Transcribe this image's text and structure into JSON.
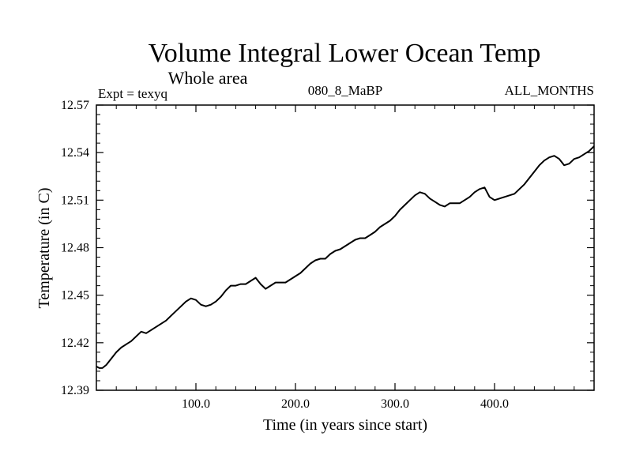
{
  "chart_data": {
    "type": "line",
    "title": "Volume Integral Lower Ocean Temp",
    "subtitle": "Whole area",
    "left_label": "Expt = texyq",
    "center_label": "080_8_MaBP",
    "right_label": "ALL_MONTHS",
    "xlabel": "Time (in years since start)",
    "ylabel": "Temperature (in C)",
    "xlim": [
      0,
      500
    ],
    "ylim": [
      12.39,
      12.57
    ],
    "x_ticks": [
      100,
      200,
      300,
      400
    ],
    "x_tick_labels": [
      "100.0",
      "200.0",
      "300.0",
      "400.0"
    ],
    "y_ticks": [
      12.39,
      12.42,
      12.45,
      12.48,
      12.51,
      12.54,
      12.57
    ],
    "y_tick_labels": [
      "12.39",
      "12.42",
      "12.45",
      "12.48",
      "12.51",
      "12.54",
      "12.57"
    ],
    "grid": false,
    "legend": "none",
    "series": [
      {
        "color": "#000000",
        "x": [
          0,
          3,
          6,
          10,
          15,
          20,
          25,
          30,
          35,
          40,
          45,
          50,
          55,
          60,
          65,
          70,
          75,
          80,
          85,
          90,
          95,
          100,
          105,
          110,
          115,
          120,
          125,
          130,
          135,
          140,
          145,
          150,
          155,
          160,
          165,
          170,
          175,
          180,
          185,
          190,
          195,
          200,
          205,
          210,
          215,
          220,
          225,
          230,
          235,
          240,
          245,
          250,
          255,
          260,
          265,
          270,
          275,
          280,
          285,
          290,
          295,
          300,
          305,
          310,
          315,
          320,
          325,
          330,
          335,
          340,
          345,
          350,
          355,
          360,
          365,
          370,
          375,
          380,
          385,
          390,
          395,
          400,
          405,
          410,
          415,
          420,
          425,
          430,
          435,
          440,
          445,
          450,
          455,
          460,
          465,
          470,
          475,
          480,
          485,
          490,
          495,
          500
        ],
        "values": [
          12.405,
          12.404,
          12.404,
          12.406,
          12.41,
          12.414,
          12.417,
          12.419,
          12.421,
          12.424,
          12.427,
          12.426,
          12.428,
          12.43,
          12.432,
          12.434,
          12.437,
          12.44,
          12.443,
          12.446,
          12.448,
          12.447,
          12.444,
          12.443,
          12.444,
          12.446,
          12.449,
          12.453,
          12.456,
          12.456,
          12.457,
          12.457,
          12.459,
          12.461,
          12.457,
          12.454,
          12.456,
          12.458,
          12.458,
          12.458,
          12.46,
          12.462,
          12.464,
          12.467,
          12.47,
          12.472,
          12.473,
          12.473,
          12.476,
          12.478,
          12.479,
          12.481,
          12.483,
          12.485,
          12.486,
          12.486,
          12.488,
          12.49,
          12.493,
          12.495,
          12.497,
          12.5,
          12.504,
          12.507,
          12.51,
          12.513,
          12.515,
          12.514,
          12.511,
          12.509,
          12.507,
          12.506,
          12.508,
          12.508,
          12.508,
          12.51,
          12.512,
          12.515,
          12.517,
          12.518,
          12.512,
          12.51,
          12.511,
          12.512,
          12.513,
          12.514,
          12.517,
          12.52,
          12.524,
          12.528,
          12.532,
          12.535,
          12.537,
          12.538,
          12.536,
          12.532,
          12.533,
          12.536,
          12.537,
          12.539,
          12.541,
          12.544
        ]
      }
    ]
  }
}
